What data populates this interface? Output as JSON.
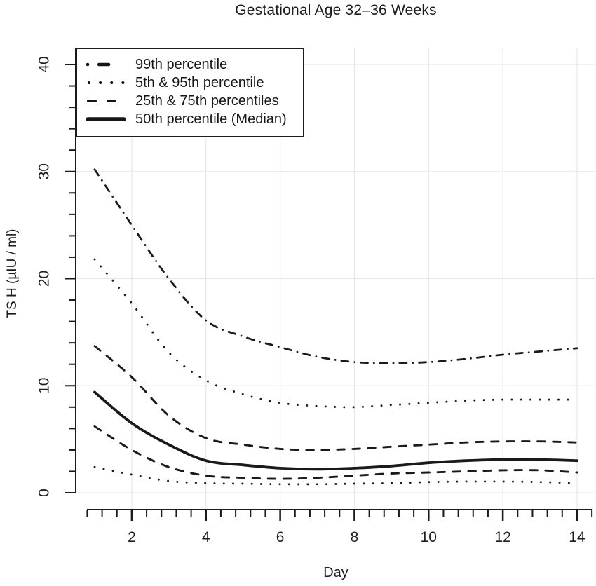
{
  "title": "Gestational Age 32–36 Weeks",
  "axes": {
    "x_label": "Day",
    "y_label": "TS H (µIU / ml)"
  },
  "legend": {
    "items": [
      {
        "label": "99th percentile",
        "style": "dashdot"
      },
      {
        "label": "5th & 95th percentile",
        "style": "dotted"
      },
      {
        "label": "25th & 75th percentiles",
        "style": "dashed"
      },
      {
        "label": "50th percentile (Median)",
        "style": "solid"
      }
    ]
  },
  "chart_data": {
    "type": "line",
    "title": "Gestational Age 32–36 Weeks",
    "xlabel": "Day",
    "ylabel": "TS H (µIU / ml)",
    "xlim": [
      0.8,
      14.4
    ],
    "ylim": [
      0,
      41.6
    ],
    "x_major_ticks": [
      2,
      4,
      6,
      8,
      10,
      12,
      14
    ],
    "x_minor_step": 0.4,
    "y_major_ticks": [
      0,
      10,
      20,
      30,
      40
    ],
    "y_minor_step": 2,
    "grid": true,
    "legend_position": "top-left",
    "x": [
      1,
      2,
      3,
      4,
      5,
      6,
      7,
      8,
      9,
      10,
      11,
      12,
      13,
      14
    ],
    "series": [
      {
        "name": "99th percentile",
        "style": "dashdot",
        "values": [
          30.2,
          25.0,
          20.0,
          16.1,
          14.6,
          13.6,
          12.7,
          12.2,
          12.1,
          12.2,
          12.5,
          12.9,
          13.2,
          13.5
        ]
      },
      {
        "name": "95th percentile",
        "style": "dotted",
        "values": [
          21.8,
          17.7,
          13.1,
          10.5,
          9.2,
          8.4,
          8.1,
          8.0,
          8.2,
          8.4,
          8.6,
          8.7,
          8.7,
          8.7
        ]
      },
      {
        "name": "75th percentile",
        "style": "dashed",
        "values": [
          13.7,
          10.8,
          7.2,
          5.1,
          4.5,
          4.1,
          4.0,
          4.1,
          4.3,
          4.5,
          4.7,
          4.8,
          4.8,
          4.7
        ]
      },
      {
        "name": "50th percentile (Median)",
        "style": "solid",
        "values": [
          9.4,
          6.5,
          4.5,
          3.0,
          2.6,
          2.3,
          2.2,
          2.3,
          2.5,
          2.8,
          3.0,
          3.1,
          3.1,
          3.0
        ]
      },
      {
        "name": "25th percentile",
        "style": "dashed",
        "values": [
          6.2,
          4.0,
          2.4,
          1.6,
          1.4,
          1.3,
          1.4,
          1.6,
          1.8,
          1.9,
          2.0,
          2.1,
          2.1,
          1.9
        ]
      },
      {
        "name": "5th percentile",
        "style": "dotted",
        "values": [
          2.4,
          1.7,
          1.1,
          0.9,
          0.85,
          0.8,
          0.8,
          0.85,
          0.9,
          1.0,
          1.05,
          1.05,
          1.0,
          0.9
        ]
      }
    ],
    "colors": {
      "stroke": "#1a1a1a",
      "grid": "#e9e9e9"
    }
  }
}
